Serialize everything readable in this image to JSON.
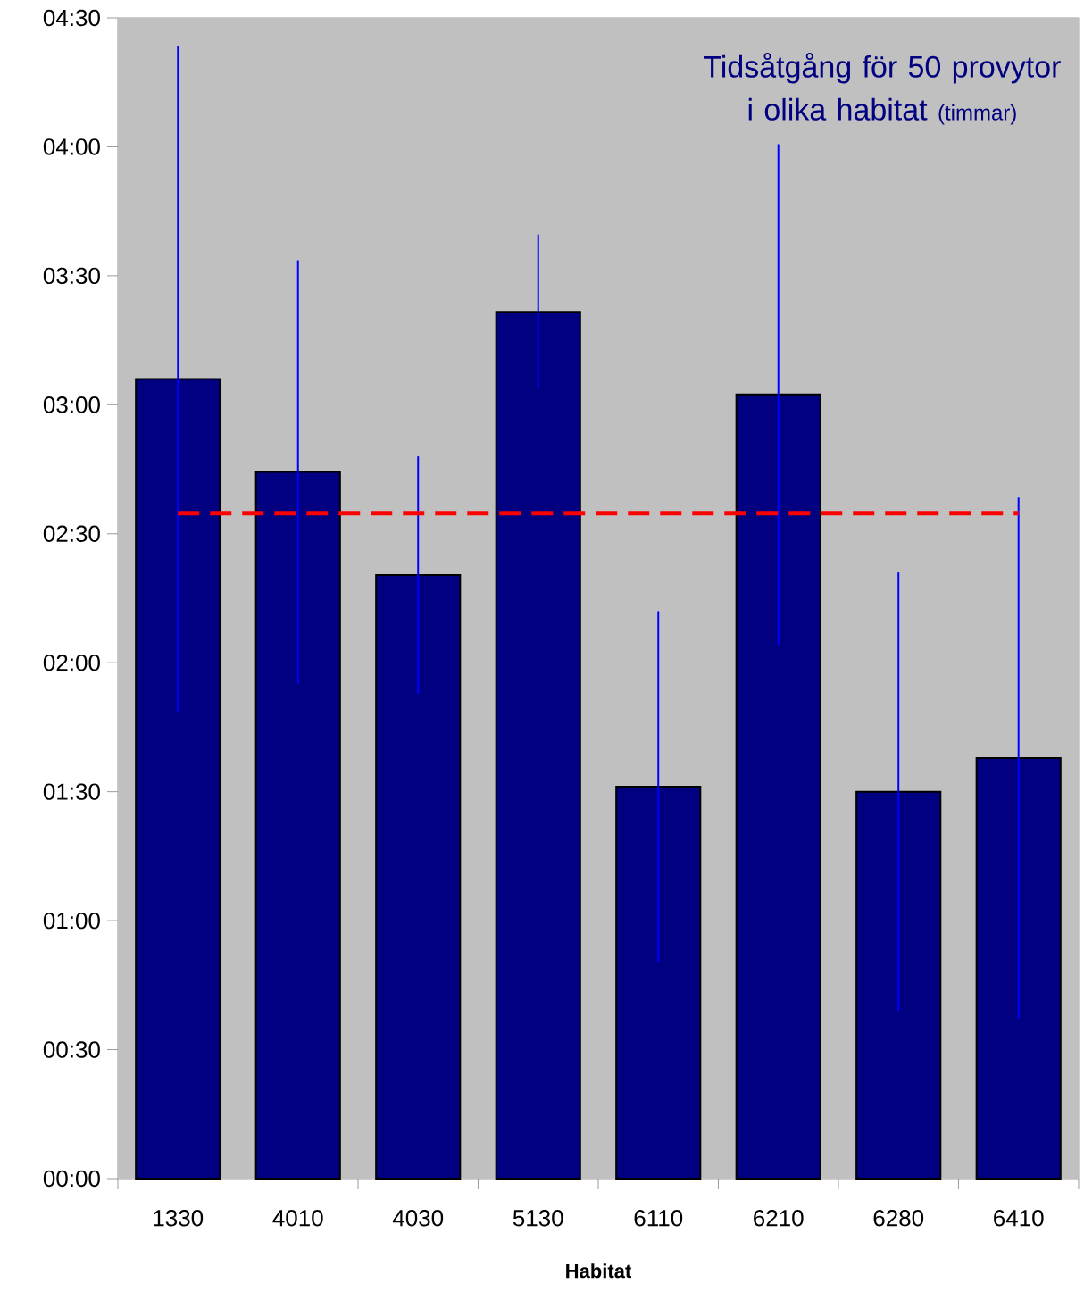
{
  "chart_data": {
    "type": "bar",
    "title": "Tidsåtgång för 50 provytor i olika habitat",
    "subtitle": "(timmar)",
    "xlabel": "Habitat",
    "categories": [
      "1330",
      "4010",
      "4030",
      "5130",
      "6110",
      "6210",
      "6280",
      "6410"
    ],
    "values": [
      3.1,
      2.74,
      2.34,
      3.36,
      1.52,
      3.04,
      1.5,
      1.63
    ],
    "errors": [
      1.29,
      0.82,
      0.46,
      0.3,
      0.68,
      0.97,
      0.85,
      1.01
    ],
    "color": "#000080",
    "ylim": [
      0,
      4.5
    ],
    "yticks": [
      {
        "value": 0,
        "label": "00:00"
      },
      {
        "value": 0.5,
        "label": "00:30"
      },
      {
        "value": 1,
        "label": "01:00"
      },
      {
        "value": 1.5,
        "label": "01:30"
      },
      {
        "value": 2,
        "label": "02:00"
      },
      {
        "value": 2.5,
        "label": "02:30"
      },
      {
        "value": 3,
        "label": "03:00"
      },
      {
        "value": 3.5,
        "label": "03:30"
      },
      {
        "value": 4,
        "label": "04:00"
      },
      {
        "value": 4.5,
        "label": "04:30"
      }
    ],
    "ref_lines": [
      {
        "axis": "y",
        "value": 2.58,
        "color": "#ff0000",
        "line_style": "dashed"
      }
    ],
    "grid": false
  }
}
